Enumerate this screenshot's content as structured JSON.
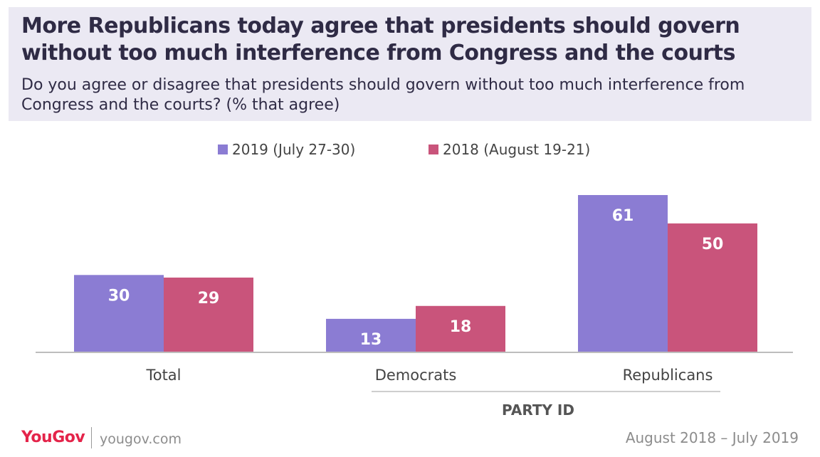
{
  "chart_data": {
    "type": "bar",
    "title": "More Republicans today agree that presidents should govern without too much interference from Congress and the courts",
    "subtitle": "Do you agree or disagree that presidents should govern without too much interference from Congress and the courts? (% that agree)",
    "categories": [
      "Total",
      "Democrats",
      "Republicans"
    ],
    "series": [
      {
        "name": "2019 (July 27-30)",
        "values": [
          30,
          13,
          61
        ],
        "color": "#8b7cd3"
      },
      {
        "name": "2018 (August 19-21)",
        "values": [
          29,
          18,
          50
        ],
        "color": "#c9547b"
      }
    ],
    "group_label": "PARTY ID",
    "ylim": [
      0,
      61
    ],
    "grid": false,
    "legend_position": "top-center",
    "data_labels": true
  },
  "footer": {
    "brand": "YouGov",
    "url": "yougov.com",
    "date_range": "August 2018 – July 2019"
  },
  "colors": {
    "header_bg": "#ebe9f3",
    "title_text": "#2f2b45",
    "brand_red": "#e4244a"
  }
}
